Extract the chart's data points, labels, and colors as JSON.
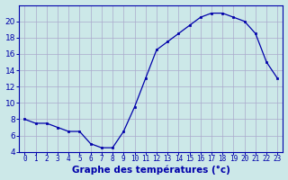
{
  "hours": [
    0,
    1,
    2,
    3,
    4,
    5,
    6,
    7,
    8,
    9,
    10,
    11,
    12,
    13,
    14,
    15,
    16,
    17,
    18,
    19,
    20,
    21,
    22,
    23
  ],
  "temps": [
    8,
    7.5,
    7.5,
    7,
    6.5,
    6.5,
    5,
    4.5,
    4.5,
    6.5,
    9.5,
    13,
    16.5,
    17.5,
    18.5,
    19.5,
    20.5,
    21,
    21,
    20.5,
    20,
    18.5,
    15,
    13
  ],
  "line_color": "#0000aa",
  "marker": "s",
  "marker_size": 1.8,
  "bg_color": "#cce8e8",
  "grid_color": "#aaaacc",
  "xlabel": "Graphe des températures (°c)",
  "xlabel_color": "#0000aa",
  "xlabel_fontsize": 7.5,
  "tick_color": "#0000aa",
  "xtick_fontsize": 5.5,
  "ytick_fontsize": 6.5,
  "ylim": [
    4,
    22
  ],
  "yticks": [
    4,
    6,
    8,
    10,
    12,
    14,
    16,
    18,
    20
  ],
  "xlim": [
    -0.5,
    23.5
  ],
  "xticks": [
    0,
    1,
    2,
    3,
    4,
    5,
    6,
    7,
    8,
    9,
    10,
    11,
    12,
    13,
    14,
    15,
    16,
    17,
    18,
    19,
    20,
    21,
    22,
    23
  ]
}
